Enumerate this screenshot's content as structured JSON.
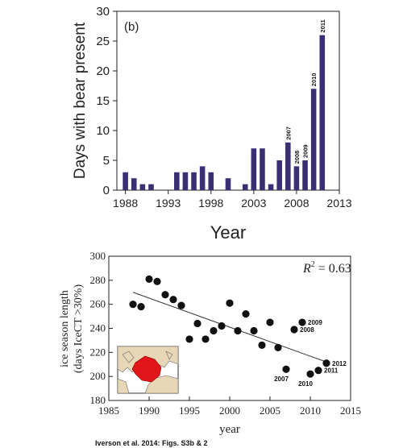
{
  "chart_data": [
    {
      "type": "bar",
      "panel_label": "(b)",
      "xlabel": "Year",
      "ylabel": "Days with bear present",
      "xlim": [
        1987,
        2013
      ],
      "ylim": [
        0,
        30
      ],
      "xticks": [
        "1988",
        "1993",
        "1998",
        "2003",
        "2008",
        "2013"
      ],
      "yticks": [
        "0",
        "5",
        "10",
        "15",
        "20",
        "25",
        "30"
      ],
      "bar_color": "#3b2e73",
      "years": [
        1988,
        1989,
        1990,
        1991,
        1992,
        1993,
        1994,
        1995,
        1996,
        1997,
        1998,
        1999,
        2000,
        2001,
        2002,
        2003,
        2004,
        2005,
        2006,
        2007,
        2008,
        2009,
        2010,
        2011
      ],
      "values": [
        3,
        2,
        1,
        1,
        0,
        0,
        3,
        3,
        3,
        4,
        3,
        0,
        2,
        0,
        1,
        7,
        7,
        1,
        5,
        8,
        4,
        5,
        17,
        26
      ],
      "bar_labels": [
        {
          "year": 2007,
          "text": "2007"
        },
        {
          "year": 2008,
          "text": "2008"
        },
        {
          "year": 2009,
          "text": "2009"
        },
        {
          "year": 2010,
          "text": "2010"
        },
        {
          "year": 2011,
          "text": "2011"
        }
      ]
    },
    {
      "type": "scatter",
      "xlabel": "year",
      "ylabel_line1": "ice season length",
      "ylabel_line2": "(days IceCT >30%)",
      "xlim": [
        1985,
        2015
      ],
      "ylim": [
        180,
        300
      ],
      "xticks": [
        "1985",
        "1990",
        "1995",
        "2000",
        "2005",
        "2010",
        "2015"
      ],
      "yticks": [
        "180",
        "200",
        "220",
        "240",
        "260",
        "280",
        "300"
      ],
      "r2_label": "R",
      "r2_sup": "2",
      "r2_value": " = 0.63",
      "points": [
        {
          "x": 1988,
          "y": 260
        },
        {
          "x": 1989,
          "y": 258
        },
        {
          "x": 1990,
          "y": 281
        },
        {
          "x": 1991,
          "y": 279
        },
        {
          "x": 1992,
          "y": 268
        },
        {
          "x": 1993,
          "y": 264
        },
        {
          "x": 1994,
          "y": 259
        },
        {
          "x": 1995,
          "y": 231
        },
        {
          "x": 1996,
          "y": 244
        },
        {
          "x": 1997,
          "y": 231
        },
        {
          "x": 1998,
          "y": 238
        },
        {
          "x": 1999,
          "y": 242
        },
        {
          "x": 2000,
          "y": 261
        },
        {
          "x": 2001,
          "y": 238
        },
        {
          "x": 2002,
          "y": 252
        },
        {
          "x": 2003,
          "y": 238
        },
        {
          "x": 2004,
          "y": 226
        },
        {
          "x": 2005,
          "y": 245
        },
        {
          "x": 2006,
          "y": 224
        },
        {
          "x": 2007,
          "y": 206
        },
        {
          "x": 2008,
          "y": 239
        },
        {
          "x": 2009,
          "y": 245
        },
        {
          "x": 2010,
          "y": 202
        },
        {
          "x": 2011,
          "y": 205
        },
        {
          "x": 2012,
          "y": 211
        }
      ],
      "trend_line": {
        "x0": 1988,
        "y0": 270,
        "x1": 2012,
        "y1": 212
      },
      "point_labels": [
        {
          "x": 2007,
          "y": 206,
          "text": "2007",
          "pos": "below"
        },
        {
          "x": 2008,
          "y": 239,
          "text": "2008",
          "pos": "right"
        },
        {
          "x": 2009,
          "y": 245,
          "text": "2009",
          "pos": "right"
        },
        {
          "x": 2010,
          "y": 202,
          "text": "2010",
          "pos": "below"
        },
        {
          "x": 2011,
          "y": 205,
          "text": "2011",
          "pos": "right"
        },
        {
          "x": 2012,
          "y": 211,
          "text": "2012",
          "pos": "right"
        }
      ],
      "map_colors": {
        "land": "#e8d7b6",
        "highlight": "#e0161b",
        "water": "#ffffff"
      }
    }
  ],
  "caption": "Iverson et al. 2014: Figs. S3b & 2"
}
